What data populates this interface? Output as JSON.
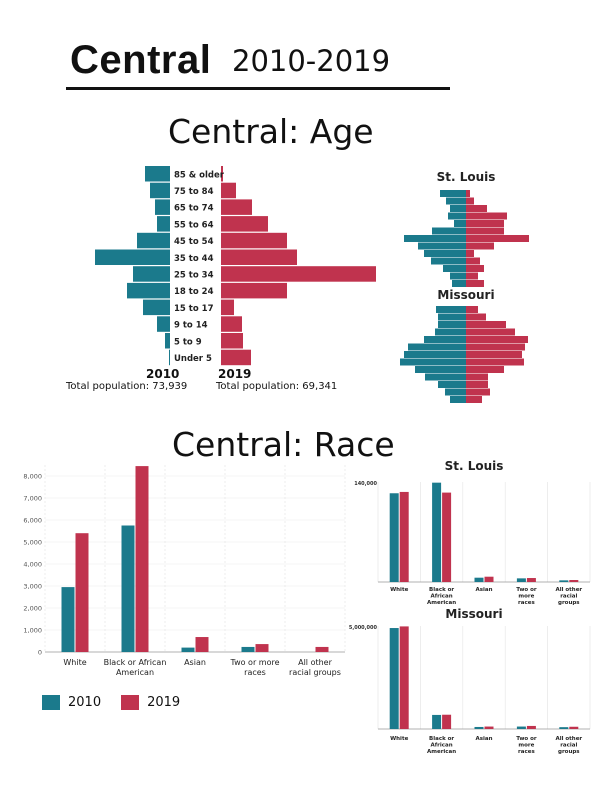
{
  "header": {
    "title": "Central",
    "years": "2010-2019"
  },
  "age_section": {
    "title": "Central: Age",
    "year_2010": "2010",
    "year_2019": "2019",
    "total_2010": "Total population: 73,939",
    "total_2019": "Total population: 69,341"
  },
  "race_section": {
    "title": "Central: Race",
    "legend": [
      {
        "label": "2010",
        "color": "#1b7a8c"
      },
      {
        "label": "2019",
        "color": "#c0334e"
      }
    ]
  },
  "colors": {
    "y2010": "#1b7a8c",
    "y2019": "#c0334e"
  },
  "chart_data": [
    {
      "id": "central-age",
      "type": "bar",
      "orientation": "horizontal",
      "categories": [
        "85 & older",
        "75 to 84",
        "65 to 74",
        "55 to 64",
        "45 to 54",
        "35 to 44",
        "25 to 34",
        "18 to 24",
        "15 to 17",
        "9 to 14",
        "5 to 9",
        "Under 5"
      ],
      "series": [
        {
          "name": "2010",
          "values": [
            25,
            20,
            15,
            13,
            33,
            75,
            37,
            43,
            27,
            13,
            5,
            1
          ]
        },
        {
          "name": "2019",
          "values": [
            2,
            15,
            31,
            47,
            66,
            76,
            155,
            66,
            13,
            21,
            22,
            30
          ]
        }
      ]
    },
    {
      "id": "stlouis-age",
      "type": "bar",
      "orientation": "horizontal",
      "title": "St. Louis",
      "series": [
        {
          "name": "2010",
          "values": [
            26,
            20,
            16,
            18,
            12,
            34,
            62,
            48,
            42,
            35,
            23,
            16,
            14
          ]
        },
        {
          "name": "2019",
          "values": [
            4,
            8,
            21,
            41,
            38,
            38,
            63,
            28,
            8,
            14,
            18,
            12,
            18
          ]
        }
      ]
    },
    {
      "id": "missouri-age",
      "type": "bar",
      "orientation": "horizontal",
      "title": "Missouri",
      "series": [
        {
          "name": "2010",
          "values": [
            30,
            28,
            28,
            31,
            42,
            58,
            62,
            66,
            51,
            41,
            28,
            21,
            16
          ]
        },
        {
          "name": "2019",
          "values": [
            12,
            20,
            40,
            49,
            62,
            59,
            56,
            58,
            38,
            22,
            22,
            24,
            16
          ]
        }
      ]
    },
    {
      "id": "central-race",
      "type": "bar",
      "categories": [
        "White",
        "Black or African American",
        "Asian",
        "Two or more races",
        "All other racial groups"
      ],
      "series": [
        {
          "name": "2010",
          "values": [
            2950,
            5750,
            200,
            230,
            0
          ]
        },
        {
          "name": "2019",
          "values": [
            5400,
            8450,
            680,
            360,
            230
          ]
        }
      ],
      "yticks": [
        "0",
        "1,000",
        "2,000",
        "3,000",
        "4,000",
        "5,000",
        "6,000",
        "7,000",
        "8,000"
      ],
      "ylim": [
        0,
        8500
      ],
      "grid": true
    },
    {
      "id": "stlouis-race",
      "type": "bar",
      "title": "St. Louis",
      "categories": [
        "White",
        "Black or African American",
        "Asian",
        "Two or more races",
        "All other racial groups"
      ],
      "series": [
        {
          "name": "2010",
          "values": [
            134000,
            150000,
            6500,
            5500,
            2500
          ]
        },
        {
          "name": "2019",
          "values": [
            136000,
            135000,
            8000,
            6000,
            3000
          ]
        }
      ],
      "yticks": [
        "140,000"
      ],
      "ylim": [
        0,
        151000
      ],
      "grid": true
    },
    {
      "id": "missouri-race",
      "type": "bar",
      "title": "Missouri",
      "categories": [
        "White",
        "Black or African American",
        "Asian",
        "Two or more races",
        "All other racial groups"
      ],
      "series": [
        {
          "name": "2010",
          "values": [
            4950000,
            690000,
            100000,
            120000,
            90000
          ]
        },
        {
          "name": "2019",
          "values": [
            5030000,
            700000,
            120000,
            150000,
            110000
          ]
        }
      ],
      "yticks": [
        "5,000,000"
      ],
      "ylim": [
        0,
        5050000
      ],
      "grid": true
    }
  ]
}
